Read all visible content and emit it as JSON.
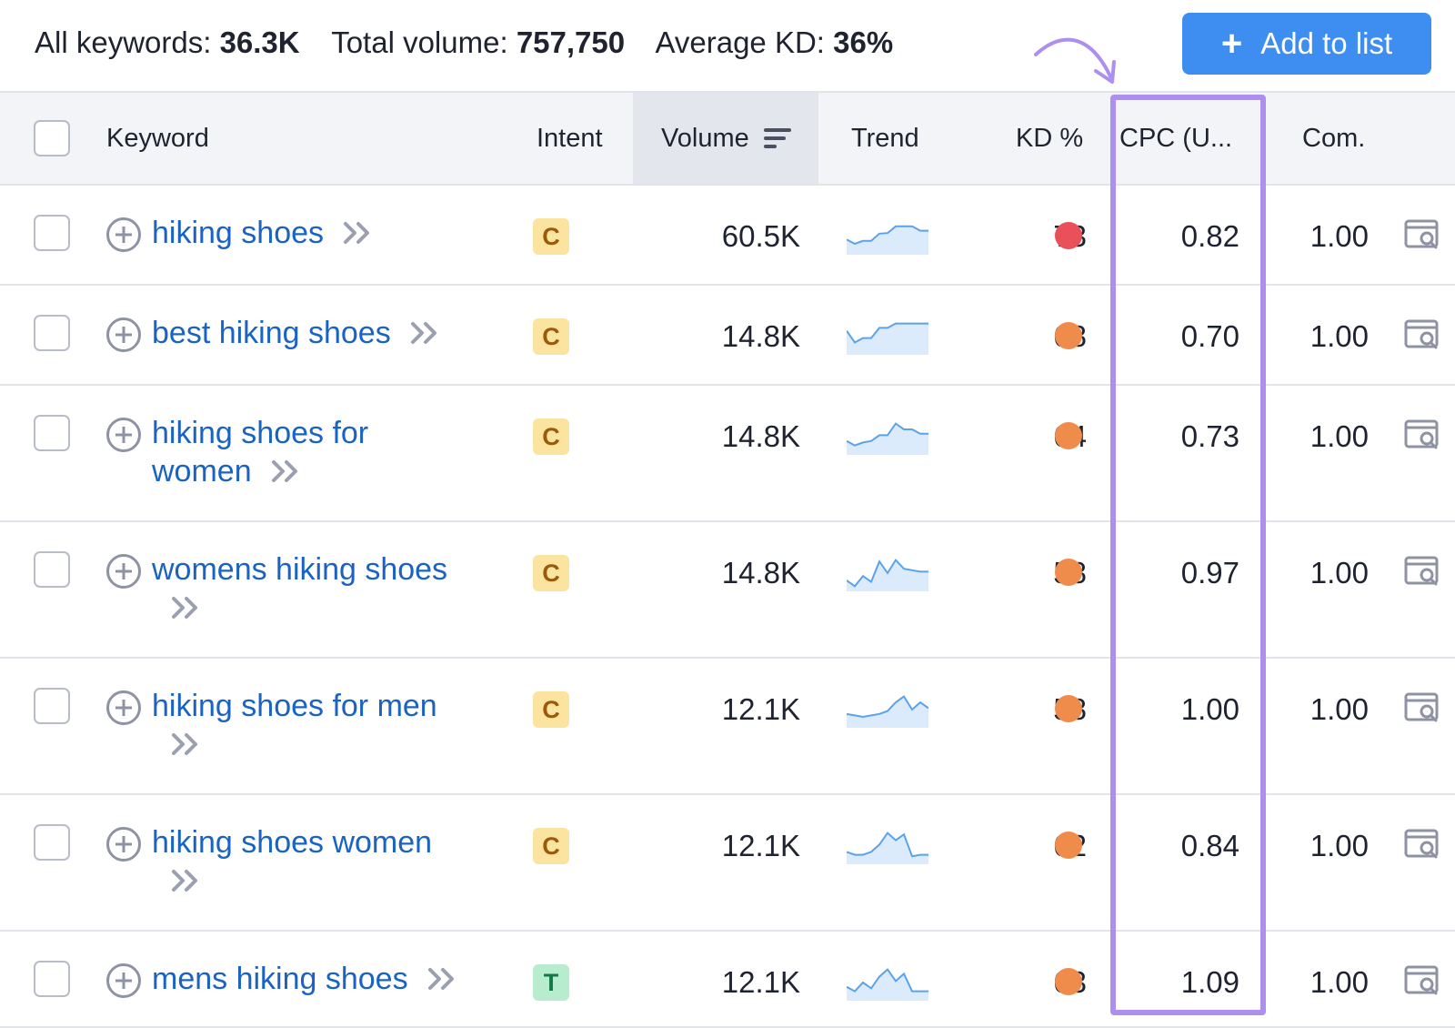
{
  "summary": {
    "all_keywords_label": "All keywords:",
    "all_keywords_value": "36.3K",
    "total_volume_label": "Total volume:",
    "total_volume_value": "757,750",
    "average_kd_label": "Average KD:",
    "average_kd_value": "36%"
  },
  "add_to_list": {
    "icon": "plus-icon",
    "label": "Add to list"
  },
  "colors": {
    "accent_button": "#3d8ef0",
    "link": "#1a63c3",
    "highlight": "#ad8ff0",
    "kd_hard": "#e9505a",
    "kd_medium": "#f08c4b",
    "trend_line": "#5aa3ea",
    "trend_fill": "#dcebfb"
  },
  "table": {
    "columns": {
      "keyword": "Keyword",
      "intent": "Intent",
      "volume": "Volume",
      "trend": "Trend",
      "kd": "KD %",
      "cpc": "CPC (U...",
      "com": "Com."
    },
    "sorted_by": "Volume",
    "rows": [
      {
        "keyword_lines": [
          "hiking shoes"
        ],
        "intent": "C",
        "volume": "60.5K",
        "trend": [
          0.4,
          0.25,
          0.35,
          0.35,
          0.6,
          0.62,
          0.85,
          0.85,
          0.85,
          0.7,
          0.7
        ],
        "kd": "73",
        "kd_level": "hard",
        "cpc": "0.82",
        "com": "1.00"
      },
      {
        "keyword_lines": [
          "best hiking shoes"
        ],
        "intent": "C",
        "volume": "14.8K",
        "trend": [
          0.7,
          0.3,
          0.45,
          0.45,
          0.8,
          0.8,
          0.95,
          0.95,
          0.95,
          0.95,
          0.95
        ],
        "kd": "68",
        "kd_level": "medium",
        "cpc": "0.70",
        "com": "1.00"
      },
      {
        "keyword_lines": [
          "hiking shoes for",
          "women"
        ],
        "intent": "C",
        "volume": "14.8K",
        "trend": [
          0.35,
          0.2,
          0.3,
          0.35,
          0.55,
          0.55,
          0.95,
          0.75,
          0.75,
          0.6,
          0.6
        ],
        "kd": "64",
        "kd_level": "medium",
        "cpc": "0.73",
        "com": "1.00"
      },
      {
        "keyword_lines": [
          "womens hiking shoes"
        ],
        "intent": "C",
        "volume": "14.8K",
        "trend": [
          0.25,
          0.05,
          0.4,
          0.2,
          0.9,
          0.5,
          0.95,
          0.65,
          0.6,
          0.55,
          0.55
        ],
        "kd": "58",
        "kd_level": "medium",
        "cpc": "0.97",
        "com": "1.00"
      },
      {
        "keyword_lines": [
          "hiking shoes for men"
        ],
        "intent": "C",
        "volume": "12.1K",
        "trend": [
          0.35,
          0.3,
          0.25,
          0.3,
          0.35,
          0.45,
          0.75,
          0.95,
          0.5,
          0.75,
          0.55
        ],
        "kd": "58",
        "kd_level": "medium",
        "cpc": "1.00",
        "com": "1.00"
      },
      {
        "keyword_lines": [
          "hiking shoes women"
        ],
        "intent": "C",
        "volume": "12.1K",
        "trend": [
          0.3,
          0.2,
          0.2,
          0.3,
          0.55,
          0.95,
          0.7,
          0.9,
          0.15,
          0.2,
          0.2
        ],
        "kd": "62",
        "kd_level": "medium",
        "cpc": "0.84",
        "com": "1.00"
      },
      {
        "keyword_lines": [
          "mens hiking shoes"
        ],
        "intent": "T",
        "volume": "12.1K",
        "trend": [
          0.35,
          0.2,
          0.5,
          0.3,
          0.7,
          0.95,
          0.55,
          0.8,
          0.2,
          0.2,
          0.2
        ],
        "kd": "63",
        "kd_level": "medium",
        "cpc": "1.09",
        "com": "1.00"
      }
    ]
  }
}
